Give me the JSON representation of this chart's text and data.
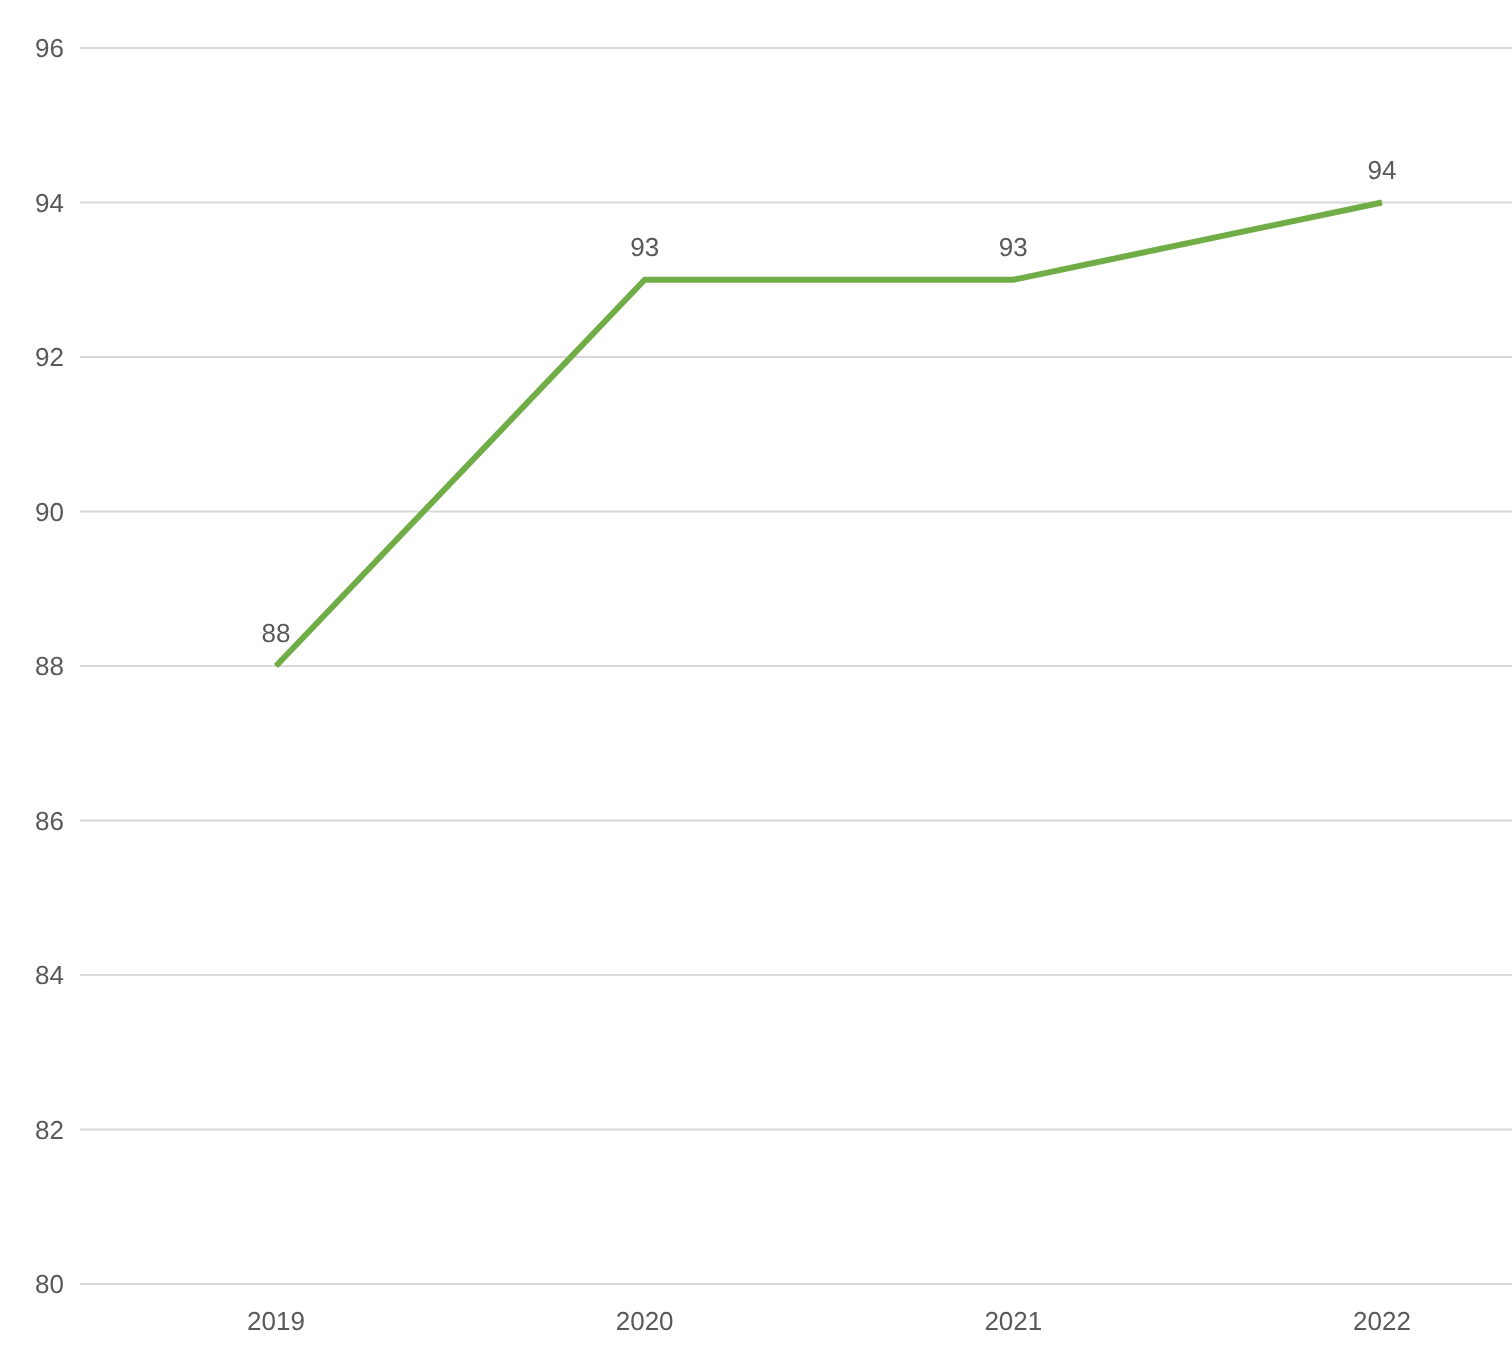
{
  "chart_data": {
    "type": "line",
    "categories": [
      "2019",
      "2020",
      "2021",
      "2022"
    ],
    "series": [
      {
        "color": "#70ad47",
        "values": [
          88,
          93,
          93,
          94
        ]
      }
    ],
    "ylim": [
      80,
      96
    ],
    "yticks": [
      80,
      82,
      84,
      86,
      88,
      90,
      92,
      94,
      96
    ],
    "grid": "y",
    "data_labels": true,
    "marker": "none",
    "line_style": "solid",
    "legend": false
  }
}
